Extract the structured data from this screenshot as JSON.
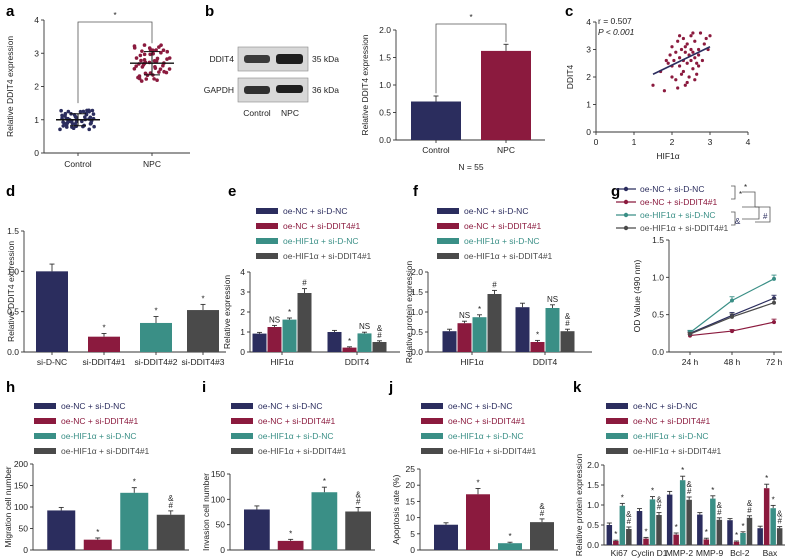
{
  "colors": {
    "navy": "#2b2d5e",
    "maroon": "#8b1a3e",
    "teal": "#3a8f86",
    "gray": "#4a4a4a",
    "gel_bg": "#d8d8d8",
    "band": "#1e1e1e"
  },
  "legend": [
    "oe-NC + si-D-NC",
    "oe-NC + si-DDIT4#1",
    "oe-HIF1α + si-D-NC",
    "oe-HIF1α + si-DDIT4#1"
  ],
  "legend_g": [
    "oe-NC + si-D-NC",
    "oe-NC + si-DDIT4#1",
    "oe-HIF1α + si-D-NC",
    "oe-HIF1α + si-DDIT4#1"
  ],
  "chart_data": [
    {
      "id": "a",
      "type": "scatter",
      "panel": "a",
      "ylabel": "Relative DDIT4 expression",
      "categories": [
        "Control",
        "NPC"
      ],
      "means": [
        1.0,
        2.7
      ],
      "sd": [
        0.18,
        0.35
      ],
      "n": 55,
      "ylim": [
        0,
        4
      ],
      "yticks": [
        "0",
        "1",
        "2",
        "3",
        "4"
      ],
      "significance": "*"
    },
    {
      "id": "b_blot",
      "type": "table",
      "panel": "b",
      "rows": [
        "DDIT4",
        "GAPDH"
      ],
      "sizes": [
        "35 kDa",
        "36 kDa"
      ],
      "lanes": [
        "Control",
        "NPC"
      ]
    },
    {
      "id": "b_bar",
      "type": "bar",
      "panel": "b",
      "ylabel": "Relative DDIT4 expression",
      "categories": [
        "Control",
        "NPC"
      ],
      "values": [
        0.7,
        1.62
      ],
      "errors": [
        0.1,
        0.12
      ],
      "ylim": [
        0,
        2.0
      ],
      "yticks": [
        "0.0",
        "0.5",
        "1.0",
        "1.5",
        "2.0"
      ],
      "significance": "*",
      "note": "N = 55"
    },
    {
      "id": "c",
      "type": "scatter",
      "panel": "c",
      "xlabel": "HIF1α",
      "ylabel": "DDIT4",
      "r_text": "r = 0.507",
      "p_text": "P < 0.001",
      "xlim": [
        0,
        4
      ],
      "ylim": [
        0,
        4
      ],
      "xticks": [
        "0",
        "1",
        "2",
        "3",
        "4"
      ],
      "yticks": [
        "0",
        "1",
        "2",
        "3",
        "4"
      ],
      "points": [
        [
          1.5,
          1.7
        ],
        [
          1.7,
          2.2
        ],
        [
          1.8,
          1.5
        ],
        [
          1.9,
          2.5
        ],
        [
          1.95,
          2.8
        ],
        [
          2.0,
          2.0
        ],
        [
          2.0,
          3.1
        ],
        [
          2.05,
          2.6
        ],
        [
          2.1,
          1.9
        ],
        [
          2.1,
          2.9
        ],
        [
          2.15,
          3.3
        ],
        [
          2.2,
          2.4
        ],
        [
          2.2,
          2.7
        ],
        [
          2.25,
          3.0
        ],
        [
          2.3,
          2.2
        ],
        [
          2.3,
          2.6
        ],
        [
          2.3,
          3.4
        ],
        [
          2.35,
          1.7
        ],
        [
          2.35,
          2.9
        ],
        [
          2.4,
          2.5
        ],
        [
          2.4,
          3.2
        ],
        [
          2.45,
          2.0
        ],
        [
          2.45,
          2.8
        ],
        [
          2.5,
          2.6
        ],
        [
          2.5,
          3.0
        ],
        [
          2.5,
          3.5
        ],
        [
          2.55,
          2.3
        ],
        [
          2.55,
          2.9
        ],
        [
          2.6,
          2.7
        ],
        [
          2.6,
          3.3
        ],
        [
          2.65,
          2.1
        ],
        [
          2.65,
          2.5
        ],
        [
          2.7,
          3.0
        ],
        [
          2.7,
          2.8
        ],
        [
          2.75,
          3.6
        ],
        [
          2.8,
          2.6
        ],
        [
          2.85,
          3.2
        ],
        [
          2.9,
          3.4
        ],
        [
          2.95,
          3.0
        ],
        [
          3.0,
          3.5
        ],
        [
          2.0,
          2.4
        ],
        [
          2.15,
          1.6
        ],
        [
          2.25,
          2.1
        ],
        [
          2.4,
          1.8
        ],
        [
          2.55,
          3.6
        ],
        [
          2.6,
          1.9
        ],
        [
          2.7,
          2.4
        ],
        [
          2.2,
          3.5
        ],
        [
          1.85,
          2.6
        ],
        [
          2.35,
          3.1
        ]
      ],
      "fit": [
        [
          1.5,
          2.1
        ],
        [
          3.0,
          3.1
        ]
      ]
    },
    {
      "id": "d",
      "type": "bar",
      "panel": "d",
      "ylabel": "Relative DDIT4 expression",
      "categories": [
        "si-D-NC",
        "si-DDIT4#1",
        "si-DDIT4#2",
        "si-DDIT4#3"
      ],
      "values": [
        1.0,
        0.19,
        0.36,
        0.52
      ],
      "errors": [
        0.09,
        0.04,
        0.08,
        0.07
      ],
      "stars": [
        "",
        "*",
        "*",
        "*"
      ],
      "ylim": [
        0,
        1.5
      ],
      "yticks": [
        "0.0",
        "0.5",
        "1.0",
        "1.5"
      ]
    },
    {
      "id": "e",
      "type": "bar",
      "panel": "e",
      "ylabel": "Relative expression",
      "categories": [
        "HIF1α",
        "DDIT4"
      ],
      "series": [
        {
          "name": "oe-NC + si-D-NC",
          "values": [
            0.92,
            1.0
          ],
          "errors": [
            0.06,
            0.08
          ]
        },
        {
          "name": "oe-NC + si-DDIT4#1",
          "values": [
            1.25,
            0.22
          ],
          "errors": [
            0.08,
            0.04
          ]
        },
        {
          "name": "oe-HIF1α + si-D-NC",
          "values": [
            1.62,
            0.93
          ],
          "errors": [
            0.08,
            0.06
          ]
        },
        {
          "name": "oe-HIF1α + si-DDIT4#1",
          "values": [
            2.95,
            0.5
          ],
          "errors": [
            0.22,
            0.06
          ]
        }
      ],
      "annotations": [
        [
          "",
          "NS",
          "*",
          "#"
        ],
        [
          "",
          "*",
          "NS",
          "&\n#"
        ]
      ],
      "ylim": [
        0,
        4
      ],
      "yticks": [
        "0",
        "1",
        "2",
        "3",
        "4"
      ]
    },
    {
      "id": "f",
      "type": "bar",
      "panel": "f",
      "ylabel": "Relative protein expression",
      "categories": [
        "HIF1α",
        "DDIT4"
      ],
      "series": [
        {
          "name": "oe-NC + si-D-NC",
          "values": [
            0.52,
            1.12
          ],
          "errors": [
            0.05,
            0.1
          ]
        },
        {
          "name": "oe-NC + si-DDIT4#1",
          "values": [
            0.72,
            0.25
          ],
          "errors": [
            0.05,
            0.04
          ]
        },
        {
          "name": "oe-HIF1α + si-D-NC",
          "values": [
            0.87,
            1.1
          ],
          "errors": [
            0.06,
            0.08
          ]
        },
        {
          "name": "oe-HIF1α + si-DDIT4#1",
          "values": [
            1.45,
            0.52
          ],
          "errors": [
            0.09,
            0.05
          ]
        }
      ],
      "annotations": [
        [
          "",
          "NS",
          "*",
          "#"
        ],
        [
          "",
          "*",
          "NS",
          "&\n#"
        ]
      ],
      "ylim": [
        0,
        2.0
      ],
      "yticks": [
        "0.0",
        "0.5",
        "1.0",
        "1.5",
        "2.0"
      ]
    },
    {
      "id": "g",
      "type": "line",
      "panel": "g",
      "ylabel": "OD Value (490 nm)",
      "x": [
        "24 h",
        "48 h",
        "72 h"
      ],
      "series": [
        {
          "name": "oe-NC + si-D-NC",
          "values": [
            0.25,
            0.49,
            0.72
          ],
          "errors": [
            0.03,
            0.04,
            0.04
          ]
        },
        {
          "name": "oe-NC + si-DDIT4#1",
          "values": [
            0.22,
            0.28,
            0.4
          ],
          "errors": [
            0.02,
            0.02,
            0.04
          ]
        },
        {
          "name": "oe-HIF1α + si-D-NC",
          "values": [
            0.26,
            0.69,
            0.98
          ],
          "errors": [
            0.03,
            0.05,
            0.05
          ]
        },
        {
          "name": "oe-HIF1α + si-DDIT4#1",
          "values": [
            0.24,
            0.47,
            0.66
          ],
          "errors": [
            0.02,
            0.04,
            0.05
          ]
        }
      ],
      "bracket_labels": [
        "*",
        "*",
        "&",
        "#"
      ],
      "ylim": [
        0,
        1.5
      ],
      "yticks": [
        "0.0",
        "0.5",
        "1.0",
        "1.5"
      ]
    },
    {
      "id": "h",
      "type": "bar",
      "panel": "h",
      "ylabel": "Migration cell number",
      "values": [
        92,
        24,
        133,
        82
      ],
      "errors": [
        7,
        4,
        12,
        9
      ],
      "stars": [
        "",
        "*",
        "*",
        "&\n#"
      ],
      "ylim": [
        0,
        200
      ],
      "yticks": [
        "0",
        "50",
        "100",
        "150",
        "200"
      ]
    },
    {
      "id": "i",
      "type": "bar",
      "panel": "i",
      "ylabel": "Invasion cell number",
      "values": [
        80,
        18,
        114,
        76
      ],
      "errors": [
        7,
        3,
        10,
        8
      ],
      "stars": [
        "",
        "*",
        "*",
        "&\n#"
      ],
      "ylim": [
        0,
        150
      ],
      "yticks": [
        "0",
        "50",
        "100",
        "150"
      ]
    },
    {
      "id": "j",
      "type": "bar",
      "panel": "j",
      "ylabel": "Apoptosis rate (%)",
      "values": [
        7.8,
        17.2,
        2.1,
        8.6
      ],
      "errors": [
        0.6,
        1.8,
        0.3,
        1.0
      ],
      "stars": [
        "",
        "*",
        "*",
        "&\n#"
      ],
      "ylim": [
        0,
        25
      ],
      "yticks": [
        "0",
        "5",
        "10",
        "15",
        "20",
        "25"
      ]
    },
    {
      "id": "k",
      "type": "bar",
      "panel": "k",
      "ylabel": "Relative protein expression",
      "categories": [
        "Ki67",
        "Cyclin D1",
        "MMP-2",
        "MMP-9",
        "Bcl-2",
        "Bax"
      ],
      "series": [
        {
          "name": "oe-NC + si-D-NC",
          "values": [
            0.5,
            0.85,
            1.26,
            0.76,
            0.62,
            0.42
          ],
          "errors": [
            0.05,
            0.06,
            0.08,
            0.05,
            0.04,
            0.05
          ]
        },
        {
          "name": "oe-NC + si-DDIT4#1",
          "values": [
            0.1,
            0.16,
            0.26,
            0.14,
            0.08,
            1.42
          ],
          "errors": [
            0.02,
            0.03,
            0.04,
            0.03,
            0.02,
            0.1
          ]
        },
        {
          "name": "oe-HIF1α + si-D-NC",
          "values": [
            0.98,
            1.14,
            1.62,
            1.16,
            0.3,
            0.92
          ],
          "errors": [
            0.06,
            0.07,
            0.1,
            0.07,
            0.03,
            0.07
          ]
        },
        {
          "name": "oe-HIF1α + si-DDIT4#1",
          "values": [
            0.4,
            0.75,
            1.13,
            0.63,
            0.68,
            0.42
          ],
          "errors": [
            0.05,
            0.06,
            0.07,
            0.05,
            0.05,
            0.04
          ]
        }
      ],
      "ylim": [
        0,
        2.0
      ],
      "yticks": [
        "0.0",
        "0.5",
        "1.0",
        "1.5",
        "2.0"
      ]
    }
  ],
  "panel_labels": [
    "a",
    "b",
    "c",
    "d",
    "e",
    "f",
    "g",
    "h",
    "i",
    "j",
    "k"
  ]
}
